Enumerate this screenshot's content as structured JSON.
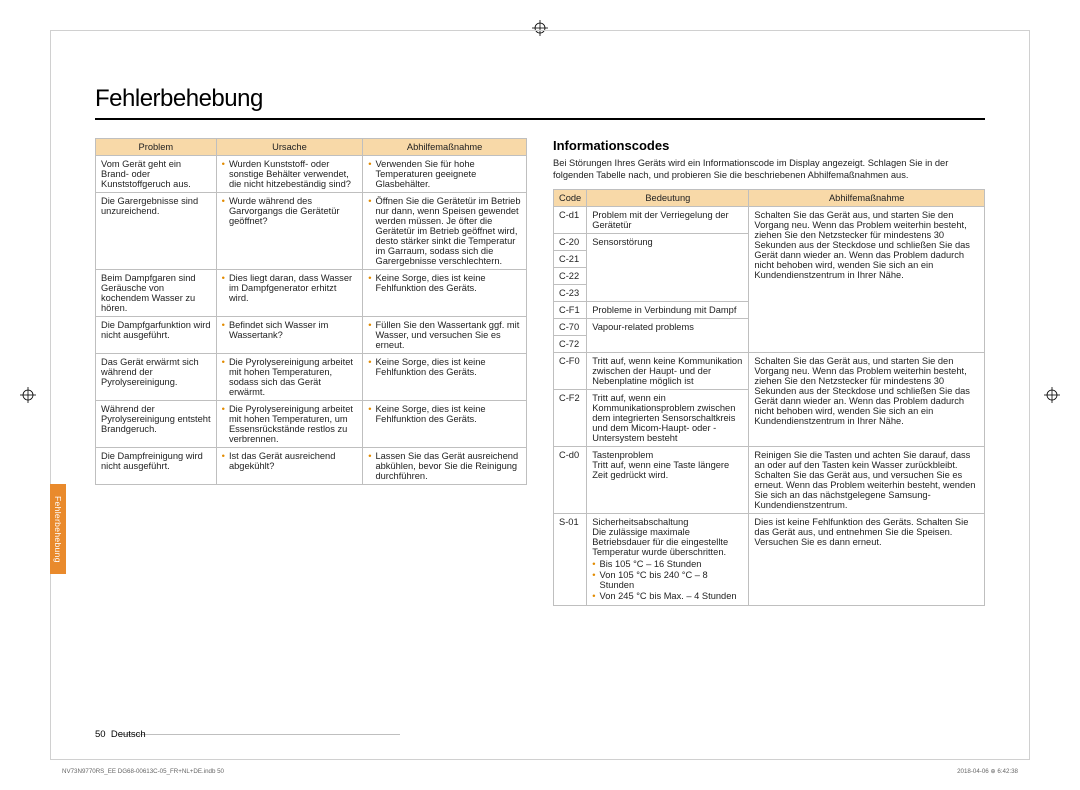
{
  "colors": {
    "header_bg": "#f8d9a8",
    "bullet": "#e28b00",
    "tab_bg": "#e98a2c",
    "border": "#bfbfbf",
    "text": "#222222",
    "page_border": "#d0d0d0"
  },
  "title": "Fehlerbehebung",
  "left_table": {
    "headers": [
      "Problem",
      "Ursache",
      "Abhilfemaßnahme"
    ],
    "rows": [
      {
        "problem": "Vom Gerät geht ein Brand- oder Kunststoffgeruch aus.",
        "cause": "Wurden Kunststoff- oder sonstige Behälter verwendet, die nicht hitzebeständig sind?",
        "action": "Verwenden Sie für hohe Temperaturen geeignete Glasbehälter."
      },
      {
        "problem": "Die Garergebnisse sind unzureichend.",
        "cause": "Wurde während des Garvorgangs die Gerätetür geöffnet?",
        "action": "Öffnen Sie die Gerätetür im Betrieb nur dann, wenn Speisen gewendet werden müssen. Je öfter die Gerätetür im Betrieb geöffnet wird, desto stärker sinkt die Temperatur im Garraum, sodass sich die Garergebnisse verschlechtern."
      },
      {
        "problem": "Beim Dampfgaren sind Geräusche von kochendem Wasser zu hören.",
        "cause": "Dies liegt daran, dass Wasser im Dampfgenerator erhitzt wird.",
        "action": "Keine Sorge, dies ist keine Fehlfunktion des Geräts."
      },
      {
        "problem": "Die Dampfgarfunktion wird nicht ausgeführt.",
        "cause": "Befindet sich Wasser im Wassertank?",
        "action": "Füllen Sie den Wassertank ggf. mit Wasser, und versuchen Sie es erneut."
      },
      {
        "problem": "Das Gerät erwärmt sich während der Pyrolysereinigung.",
        "cause": "Die Pyrolysereinigung arbeitet mit hohen Temperaturen, sodass sich das Gerät erwärmt.",
        "action": "Keine Sorge, dies ist keine Fehlfunktion des Geräts."
      },
      {
        "problem": "Während der Pyrolysereinigung entsteht Brandgeruch.",
        "cause": "Die Pyrolysereinigung arbeitet mit hohen Temperaturen, um Essensrückstände restlos zu verbrennen.",
        "action": "Keine Sorge, dies ist keine Fehlfunktion des Geräts."
      },
      {
        "problem": "Die Dampfreinigung wird nicht ausgeführt.",
        "cause": "Ist das Gerät ausreichend abgekühlt?",
        "action": "Lassen Sie das Gerät ausreichend abkühlen, bevor Sie die Reinigung durchführen."
      }
    ]
  },
  "right_section": {
    "title": "Informationscodes",
    "description": "Bei Störungen Ihres Geräts wird ein Informationscode im Display angezeigt. Schlagen Sie in der folgenden Tabelle nach, und probieren Sie die beschriebenen Abhilfemaßnahmen aus.",
    "headers": [
      "Code",
      "Bedeutung",
      "Abhilfemaßnahme"
    ],
    "groups": [
      {
        "codes": [
          "C-d1"
        ],
        "meaning": "Problem mit der Verriegelung der Gerätetür",
        "action_ref": 0
      },
      {
        "codes": [
          "C-20",
          "C-21",
          "C-22",
          "C-23"
        ],
        "meaning": "Sensorstörung",
        "action_ref": 0
      },
      {
        "codes": [
          "C-F1"
        ],
        "meaning": "Probleme in Verbindung mit Dampf",
        "action_ref": 0
      },
      {
        "codes": [
          "C-70",
          "C-72"
        ],
        "meaning": "Vapour-related problems",
        "action_ref": 0
      },
      {
        "codes": [
          "C-F0"
        ],
        "meaning": "Tritt auf, wenn keine Kommunikation zwischen der Haupt- und der Nebenplatine möglich ist",
        "action_ref": 1
      },
      {
        "codes": [
          "C-F2"
        ],
        "meaning": "Tritt auf, wenn ein Kommunikationsproblem zwischen dem integrierten Sensorschaltkreis und dem Micom-Haupt- oder -Untersystem besteht",
        "action_ref": 1
      },
      {
        "codes": [
          "C-d0"
        ],
        "meaning_title": "Tastenproblem",
        "meaning": "Tritt auf, wenn eine Taste längere Zeit gedrückt wird.",
        "action": "Reinigen Sie die Tasten und achten Sie darauf, dass an oder auf den Tasten kein Wasser zurückbleibt. Schalten Sie das Gerät aus, und versuchen Sie es erneut. Wenn das Problem weiterhin besteht, wenden Sie sich an das nächstgelegene Samsung-Kundendienstzentrum."
      },
      {
        "codes": [
          "S-01"
        ],
        "meaning_title": "Sicherheitsabschaltung",
        "meaning": "Die zulässige maximale Betriebsdauer für die eingestellte Temperatur wurde überschritten.",
        "sub": [
          "Bis 105 °C – 16 Stunden",
          "Von 105 °C bis 240 °C – 8 Stunden",
          "Von 245 °C bis Max. – 4 Stunden"
        ],
        "action": "Dies ist keine Fehlfunktion des Geräts. Schalten Sie das Gerät aus, und entnehmen Sie die Speisen. Versuchen Sie es dann erneut."
      }
    ],
    "shared_actions": [
      "Schalten Sie das Gerät aus, und starten Sie den Vorgang neu. Wenn das Problem weiterhin besteht, ziehen Sie den Netzstecker für mindestens 30 Sekunden aus der Steckdose und schließen Sie das Gerät dann wieder an.\nWenn das Problem dadurch nicht behoben wird, wenden Sie sich an ein Kundendienstzentrum in Ihrer Nähe.",
      "Schalten Sie das Gerät aus, und starten Sie den Vorgang neu. Wenn das Problem weiterhin besteht, ziehen Sie den Netzstecker für mindestens 30 Sekunden aus der Steckdose und schließen Sie das Gerät dann wieder an. Wenn das Problem dadurch nicht behoben wird, wenden Sie sich an ein Kundendienstzentrum in Ihrer Nähe."
    ]
  },
  "side_tab": "Fehlerbehebung",
  "footer": {
    "page": "50",
    "lang": "Deutsch"
  },
  "imprint": {
    "left": "NV73N9770RS_EE DG68-00613C-05_FR+NL+DE.indb   50",
    "right": "2018-04-06   ⊕ 6:42:38"
  }
}
